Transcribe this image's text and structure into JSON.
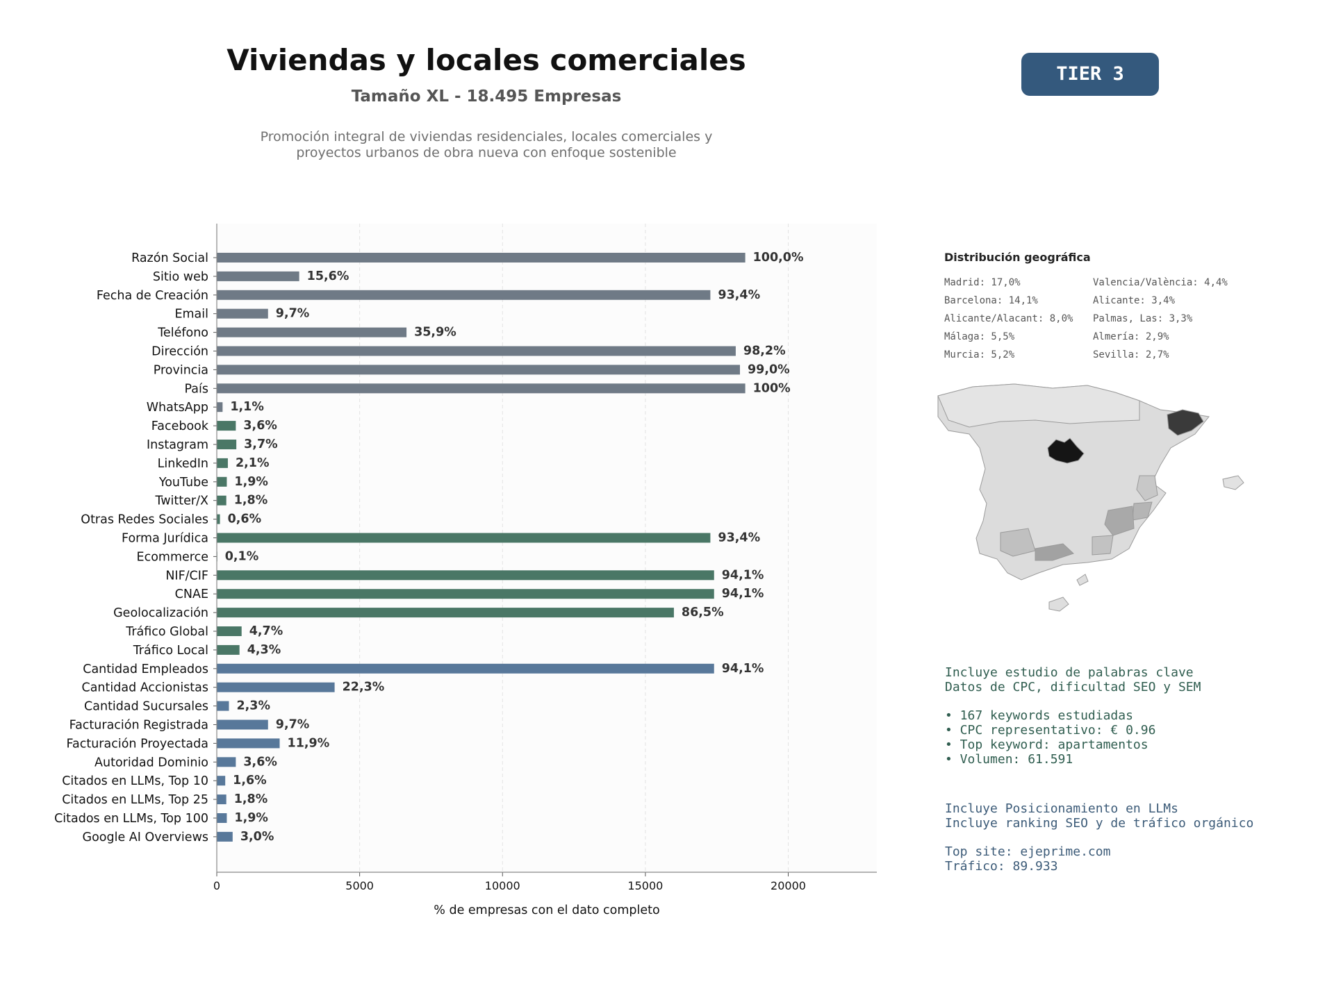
{
  "header": {
    "title": "Viviendas y locales comerciales",
    "subtitle": "Tamaño XL - 18.495 Empresas",
    "description_line1": "Promoción integral de viviendas residenciales, locales comerciales y",
    "description_line2": "proyectos urbanos de obra nueva con enfoque sostenible",
    "tier": "TIER 3"
  },
  "chart_data": {
    "type": "bar",
    "orientation": "horizontal",
    "xlabel": "% de empresas con el dato completo",
    "xlim": [
      0,
      23100
    ],
    "xticks": [
      0,
      5000,
      10000,
      15000,
      20000
    ],
    "grid": "vertical dashed",
    "categories": [
      "Razón Social",
      "Sitio web",
      "Fecha de Creación",
      "Email",
      "Teléfono",
      "Dirección",
      "Provincia",
      "País",
      "WhatsApp",
      "Facebook",
      "Instagram",
      "LinkedIn",
      "YouTube",
      "Twitter/X",
      "Otras Redes Sociales",
      "Forma Jurídica",
      "Ecommerce",
      "NIF/CIF",
      "CNAE",
      "Geolocalización",
      "Tráfico Global",
      "Tráfico Local",
      "Cantidad Empleados",
      "Cantidad Accionistas",
      "Cantidad Sucursales",
      "Facturación Registrada",
      "Facturación Proyectada",
      "Autoridad Dominio",
      "Citados en LLMs, Top 10",
      "Citados en LLMs, Top 25",
      "Citados en LLMs, Top 100",
      "Google AI Overviews"
    ],
    "values": [
      18495,
      2885,
      17274,
      1794,
      6640,
      18162,
      18310,
      18495,
      203,
      666,
      684,
      388,
      351,
      333,
      111,
      17274,
      18,
      17404,
      17404,
      15998,
      869,
      795,
      17404,
      4124,
      425,
      1794,
      2201,
      666,
      296,
      333,
      351,
      555
    ],
    "labels": [
      "100,0%",
      "15,6%",
      "93,4%",
      "9,7%",
      "35,9%",
      "98,2%",
      "99,0%",
      "100%",
      "1,1%",
      "3,6%",
      "3,7%",
      "2,1%",
      "1,9%",
      "1,8%",
      "0,6%",
      "93,4%",
      "0,1%",
      "94,1%",
      "94,1%",
      "86,5%",
      "4,7%",
      "4,3%",
      "94,1%",
      "22,3%",
      "2,3%",
      "9,7%",
      "11,9%",
      "3,6%",
      "1,6%",
      "1,8%",
      "1,9%",
      "3,0%"
    ],
    "groups": [
      "g",
      "g",
      "g",
      "g",
      "g",
      "g",
      "g",
      "g",
      "g",
      "v",
      "v",
      "v",
      "v",
      "v",
      "v",
      "v",
      "v",
      "v",
      "v",
      "v",
      "v",
      "v",
      "b",
      "b",
      "b",
      "b",
      "b",
      "b",
      "b",
      "b",
      "b",
      "b"
    ],
    "colors": {
      "g": "#6f7a86",
      "v": "#4a7766",
      "b": "#58789a"
    }
  },
  "geo": {
    "title": "Distribución geográfica",
    "items": [
      "Madrid: 17,0%",
      "Valencia/València: 4,4%",
      "Barcelona: 14,1%",
      "Alicante: 3,4%",
      "Alicante/Alacant: 8,0%",
      "Palmas, Las: 3,3%",
      "Málaga: 5,5%",
      "Almería: 2,9%",
      "Murcia: 5,2%",
      "Sevilla: 2,7%"
    ]
  },
  "keywords": {
    "line1": "Incluye estudio de palabras clave",
    "line2": "Datos de CPC, dificultad SEO y SEM",
    "b1": "• 167 keywords estudiadas",
    "b2": "• CPC representativo: € 0.96",
    "b3": "• Top keyword: apartamentos",
    "b4": "• Volumen: 61.591"
  },
  "llm": {
    "line1": "Incluye Posicionamiento en LLMs",
    "line2": "Incluye ranking SEO y de tráfico orgánico",
    "line3": "Top site: ejeprime.com",
    "line4": "Tráfico: 89.933"
  }
}
